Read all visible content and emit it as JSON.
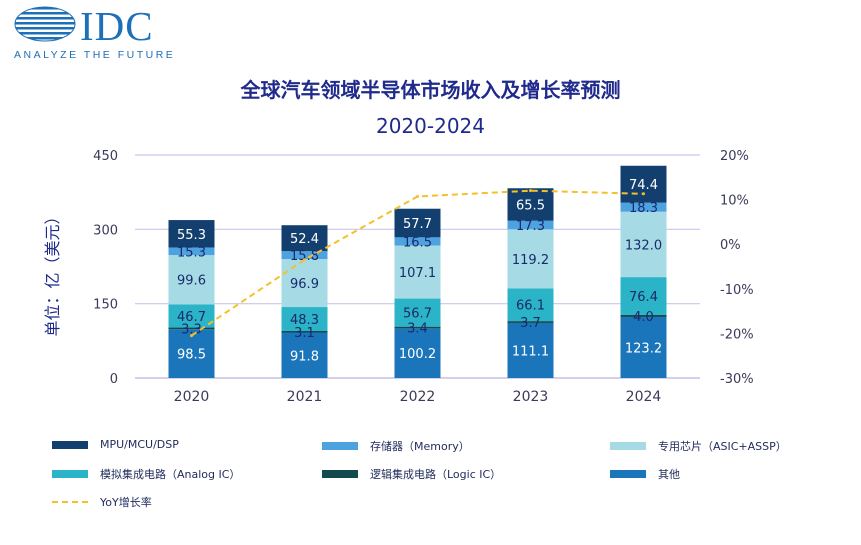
{
  "logo": {
    "text": "IDC",
    "tagline": "ANALYZE THE FUTURE"
  },
  "colors": {
    "mpu": "#123f6e",
    "memory": "#4da3e0",
    "asic": "#a6dbe6",
    "analog": "#2bb3c8",
    "logic": "#124a4e",
    "other": "#1b75bb",
    "yoy": "#f3c12a",
    "title": "#1f2a8c"
  },
  "chart_data": {
    "type": "bar",
    "stacked": true,
    "title": "全球汽车领域半导体市场收入及增长率预测",
    "subtitle": "2020-2024",
    "ylabel": "单位：亿（美元）",
    "y2label": "",
    "categories": [
      "2020",
      "2021",
      "2022",
      "2023",
      "2024"
    ],
    "ylim": [
      0,
      450
    ],
    "yticks": [
      "0",
      "150",
      "300",
      "450"
    ],
    "y2lim": [
      -30,
      20
    ],
    "y2ticks": [
      "-30%",
      "-20%",
      "-10%",
      "0%",
      "10%",
      "20%"
    ],
    "grid": true,
    "series": [
      {
        "name": "其他",
        "key": "other",
        "values": [
          98.5,
          91.8,
          100.2,
          111.1,
          123.2
        ],
        "labels": [
          "98.5",
          "91.8",
          "100.2",
          "111.1",
          "123.2"
        ]
      },
      {
        "name": "逻辑集成电路（Logic IC）",
        "key": "logic",
        "values": [
          3.3,
          3.1,
          3.4,
          3.7,
          4.0
        ],
        "labels": [
          "3.3",
          "3.1",
          "3.4",
          "3.7",
          "4.0"
        ]
      },
      {
        "name": "模拟集成电路（Analog IC）",
        "key": "analog",
        "values": [
          46.7,
          48.3,
          56.7,
          66.1,
          76.4
        ],
        "labels": [
          "46.7",
          "48.3",
          "56.7",
          "66.1",
          "76.4"
        ]
      },
      {
        "name": "专用芯片（ASIC+ASSP）",
        "key": "asic",
        "values": [
          99.6,
          96.9,
          107.1,
          119.2,
          132.0
        ],
        "labels": [
          "99.6",
          "96.9",
          "107.1",
          "119.2",
          "132.0"
        ]
      },
      {
        "name": "存储器（Memory）",
        "key": "memory",
        "values": [
          15.3,
          15.8,
          16.5,
          17.3,
          18.3
        ],
        "labels": [
          "15.3",
          "15.8",
          "16.5",
          "17.3",
          "18.3"
        ]
      },
      {
        "name": "MPU/MCU/DSP",
        "key": "mpu",
        "values": [
          55.3,
          52.4,
          57.7,
          65.5,
          74.4
        ],
        "labels": [
          "55.3",
          "52.4",
          "57.7",
          "65.5",
          "74.4"
        ]
      }
    ],
    "line_series": {
      "name": "YoY增长率",
      "axis": "right",
      "values": [
        -20.5,
        -3.5,
        10.7,
        12.0,
        11.3
      ],
      "unit": "%"
    },
    "legend": {
      "placement": "bottom",
      "items": [
        {
          "label": "MPU/MCU/DSP",
          "key": "mpu"
        },
        {
          "label": "存储器（Memory）",
          "key": "memory"
        },
        {
          "label": "专用芯片（ASIC+ASSP）",
          "key": "asic"
        },
        {
          "label": "模拟集成电路（Analog IC）",
          "key": "analog"
        },
        {
          "label": "逻辑集成电路（Logic IC）",
          "key": "logic"
        },
        {
          "label": "其他",
          "key": "other"
        },
        {
          "label": "YoY增长率",
          "key": "yoy"
        }
      ]
    }
  }
}
